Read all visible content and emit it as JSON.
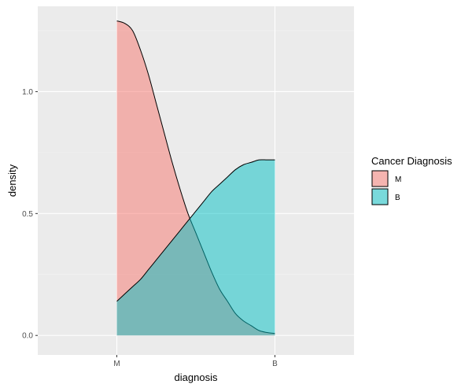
{
  "chart_data": {
    "type": "area",
    "title": "",
    "xlabel": "diagnosis",
    "ylabel": "density",
    "categories": [
      "M",
      "B"
    ],
    "xlim": [
      0.5,
      2.5
    ],
    "ylim": [
      -0.08,
      1.35
    ],
    "yticks": [
      0.0,
      0.5,
      1.0
    ],
    "ytick_labels": [
      "0.0",
      "0.5",
      "1.0"
    ],
    "grid": true,
    "legend": {
      "title": "Cancer Diagnosis",
      "placement": "right",
      "entries": [
        {
          "label": "M",
          "color": "#F8766D"
        },
        {
          "label": "B",
          "color": "#00BFC4"
        }
      ]
    },
    "series": [
      {
        "key": "M",
        "color": "#F8766D",
        "x": [
          1.0,
          1.05,
          1.1,
          1.15,
          1.2,
          1.25,
          1.3,
          1.35,
          1.4,
          1.45,
          1.5,
          1.55,
          1.6,
          1.65,
          1.7,
          1.75,
          1.8,
          1.85,
          1.9,
          1.95,
          2.0
        ],
        "y": [
          1.29,
          1.28,
          1.25,
          1.17,
          1.07,
          0.95,
          0.83,
          0.71,
          0.6,
          0.5,
          0.42,
          0.34,
          0.26,
          0.19,
          0.14,
          0.09,
          0.06,
          0.04,
          0.02,
          0.012,
          0.008
        ]
      },
      {
        "key": "B",
        "color": "#00BFC4",
        "x": [
          1.0,
          1.05,
          1.1,
          1.15,
          1.2,
          1.25,
          1.3,
          1.35,
          1.4,
          1.45,
          1.5,
          1.55,
          1.6,
          1.65,
          1.7,
          1.75,
          1.8,
          1.85,
          1.9,
          1.95,
          2.0
        ],
        "y": [
          0.14,
          0.17,
          0.2,
          0.23,
          0.27,
          0.31,
          0.35,
          0.39,
          0.43,
          0.47,
          0.51,
          0.55,
          0.59,
          0.62,
          0.65,
          0.68,
          0.7,
          0.71,
          0.72,
          0.72,
          0.72
        ]
      }
    ]
  }
}
